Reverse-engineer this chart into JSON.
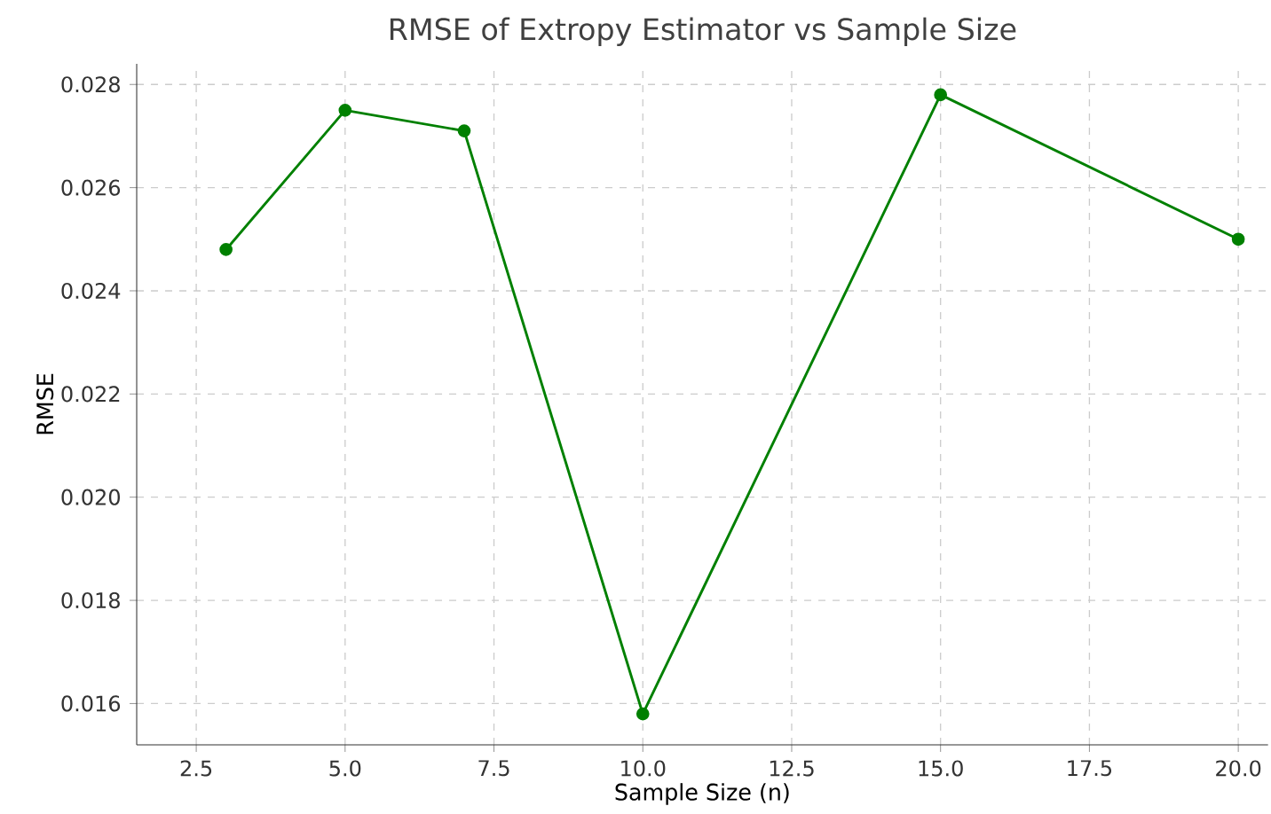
{
  "chart_data": {
    "type": "line",
    "title": "RMSE of Extropy Estimator vs Sample Size",
    "xlabel": "Sample Size (n)",
    "ylabel": "RMSE",
    "x": [
      3,
      5,
      7,
      10,
      15,
      20
    ],
    "series": [
      {
        "color": "#008000",
        "values": [
          0.0248,
          0.0275,
          0.0271,
          0.0158,
          0.0278,
          0.025
        ]
      }
    ],
    "xlim": [
      1.5,
      20.5
    ],
    "ylim": [
      0.0152,
      0.0284
    ],
    "xticks": [
      2.5,
      {
        "value": 5,
        "label": "5.0"
      },
      7.5,
      {
        "value": 10,
        "label": "10.0"
      },
      12.5,
      {
        "value": 15,
        "label": "15.0"
      },
      17.5,
      {
        "value": 20,
        "label": "20.0"
      }
    ],
    "yticks": [
      0.016,
      0.018,
      {
        "value": 0.02,
        "label": "0.020"
      },
      0.022,
      0.024,
      0.026,
      0.028
    ],
    "grid": true,
    "marker": "circle",
    "line_style": "solid"
  }
}
